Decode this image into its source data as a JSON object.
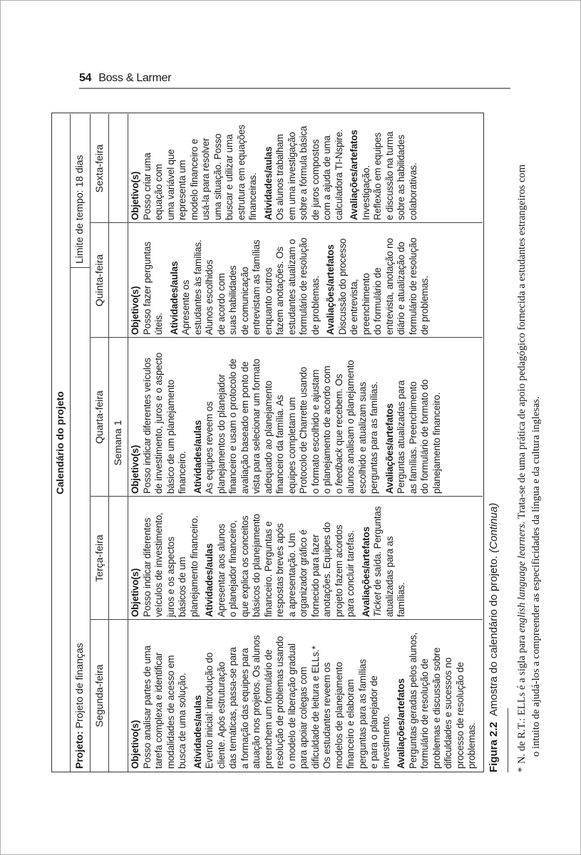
{
  "running_head": {
    "page_number": "54",
    "authors": "Boss & Larmer"
  },
  "table": {
    "title": "Calendário do projeto",
    "project_label": "Projeto:",
    "project_value": "Projeto de finanças",
    "time_limit_label": "Limite de tempo:",
    "time_limit_value": "18 dias",
    "week_label": "Semana 1",
    "columns": [
      {
        "day": "Segunda-feira",
        "sections": [
          {
            "heading": "Objetivo(s)",
            "lines": [
              "Posso analisar partes de uma",
              "tarefa complexa e identificar",
              "modalidades de acesso em",
              "busca de uma solução."
            ]
          },
          {
            "heading": "Atividades/aulas",
            "lines": [
              "Evento inicial: introdução do",
              "cliente. Após estruturação",
              "das temáticas, passa-se para",
              "a formação das equipes para",
              "atuação nos projetos. Os alunos",
              "preenchem um formulário de",
              "resolução de problemas usando",
              "o modelo de liberação gradual",
              "para apoiar colegas com",
              "dificuldade de leitura e ELLs.*",
              "Os estudantes reveem os",
              "modelos de planejamento",
              "financeiro e elaboram",
              "perguntas para as famílias",
              "e para o planejador de",
              "investimento."
            ]
          },
          {
            "heading": "Avaliações/artefatos",
            "lines": [
              "Perguntas geradas pelos alunos,",
              "formulário de resolução de",
              "problemas e discussão sobre",
              "dificuldades e sucessos no",
              "processo de resolução de",
              "problemas."
            ]
          }
        ]
      },
      {
        "day": "Terça-feira",
        "sections": [
          {
            "heading": "Objetivo(s)",
            "lines": [
              "Posso indicar diferentes",
              "veículos de investimento,",
              "juros e os aspectos",
              "básicos de um",
              "planejamento financeiro."
            ]
          },
          {
            "heading": "Atividades/aulas",
            "lines": [
              "Apresentar aos alunos",
              "o planejador financeiro,",
              "que explica os conceitos",
              "básicos do planejamento",
              "financeiro. Perguntas e",
              "respostas breves após",
              "a apresentação. Um",
              "organizador gráfico é",
              "fornecido para fazer",
              "anotações. Equipes do",
              "projeto fazem acordos",
              "para concluir tarefas."
            ]
          },
          {
            "heading": "Avaliações/artefatos",
            "lines": [
              [
                {
                  "em": "Ticket"
                },
                " de saída. Perguntas"
              ],
              "atualizadas para as",
              "famílias."
            ]
          }
        ]
      },
      {
        "day": "Quarta-feira",
        "sections": [
          {
            "heading": "Objetivo(s)",
            "lines": [
              "Posso indicar diferentes veículos",
              "de investimento, juros e o aspecto",
              "básico de um planejamento",
              "financeiro."
            ]
          },
          {
            "heading": "Atividades/aulas",
            "lines": [
              "As equipes reveem os",
              "planejamentos do planejador",
              "financeiro e usam o protocolo de",
              "avaliação baseado em ponto de",
              "vista para selecionar um formato",
              "adequado ao planejamento",
              "financeiro da família. As",
              "equipes completam um",
              "Protocolo de Charrette usando",
              "o formato escolhido e ajustam",
              "o planejamento de acordo com",
              [
                "o ",
                {
                  "em": "feedback"
                },
                " que recebem. Os"
              ],
              "alunos analisam o planejamento",
              "escolhido e atualizam suas",
              "perguntas para as famílias."
            ]
          },
          {
            "heading": "Avaliações/artefatos",
            "lines": [
              "Perguntas atualizadas para",
              "as famílias. Preenchimento",
              "do formulário de formato do",
              "planejamento financeiro."
            ]
          }
        ]
      },
      {
        "day": "Quinta-feira",
        "sections": [
          {
            "heading": "Objetivo(s)",
            "lines": [
              "Posso fazer perguntas",
              "úteis."
            ]
          },
          {
            "heading": "Atividades/aulas",
            "lines": [
              "Apresente os",
              "estudantes às famílias.",
              "Alunos escolhidos",
              "de acordo com",
              "suas habilidades",
              "de comunicação",
              "entrevistam as famílias",
              "enquanto outros",
              "fazem anotações. Os",
              "estudantes atualizam o",
              "formulário de resolução",
              "de problemas."
            ]
          },
          {
            "heading": "Avaliações/artefatos",
            "lines": [
              "Discussão do processo",
              "de entrevista,",
              "preenchimento",
              "do formulário de",
              "entrevista, anotação no",
              "diário e atualização do",
              "formulário de resolução",
              "de problemas."
            ]
          }
        ]
      },
      {
        "day": "Sexta-feira",
        "sections": [
          {
            "heading": "Objetivo(s)",
            "lines": [
              "Posso criar uma",
              "equação com",
              "uma variável que",
              "representa um",
              "modelo financeiro e",
              "usá-la para resolver",
              "uma situação. Posso",
              "buscar e utilizar uma",
              "estrutura em equações",
              "financeiras."
            ]
          },
          {
            "heading": "Atividades/aulas",
            "lines": [
              "Os alunos trabalham",
              "em uma investigação",
              "sobre a fórmula básica",
              "de juros compostos",
              "com a ajuda de uma",
              "calculadora TI-Nspire."
            ]
          },
          {
            "heading": "Avaliações/artefatos",
            "lines": [
              "Investigação.",
              "Reflexão em equipes",
              "e discussão na turma",
              "sobre as habilidades",
              "colaborativas."
            ]
          }
        ]
      }
    ]
  },
  "caption": {
    "label": "Figura 2.2",
    "text": "Amostra do calendário do projeto.",
    "continued": "(Continua)"
  },
  "footnote": {
    "marker": "*",
    "line1_a": "N. de R.T.: ELLs é a sigla para ",
    "line1_em": "english language learners",
    "line1_b": ". Trata-se de uma prática de apoio pedagógico fornecida a estudantes estrangeiros com",
    "line2": "o intuito de ajudá-los a compreender as especificidades da língua e da cultura inglesas."
  }
}
